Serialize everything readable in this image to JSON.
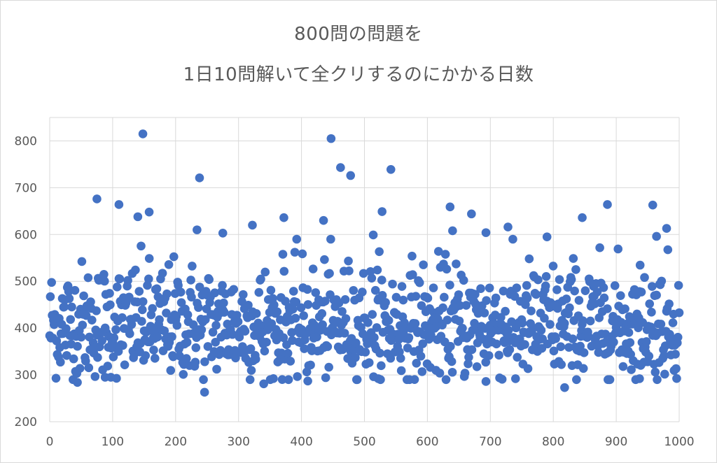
{
  "chart_data": {
    "type": "scatter",
    "title_line1": "800問の問題を",
    "title_line2": "1日10問解いて全クリするのにかかる日数",
    "xlabel": "",
    "ylabel": "",
    "xlim": [
      0,
      1000
    ],
    "ylim": [
      200,
      850
    ],
    "x_ticks": [
      "0",
      "100",
      "200",
      "300",
      "400",
      "500",
      "600",
      "700",
      "800",
      "900",
      "1000"
    ],
    "y_ticks": [
      "200",
      "300",
      "400",
      "500",
      "600",
      "700",
      "800"
    ],
    "grid": true,
    "marker_color": "#4472c4",
    "notable_points": [
      {
        "x": 148,
        "y": 815
      },
      {
        "x": 447,
        "y": 805
      },
      {
        "x": 462,
        "y": 743
      },
      {
        "x": 542,
        "y": 739
      },
      {
        "x": 478,
        "y": 726
      },
      {
        "x": 238,
        "y": 721
      },
      {
        "x": 75,
        "y": 676
      },
      {
        "x": 110,
        "y": 664
      },
      {
        "x": 886,
        "y": 664
      },
      {
        "x": 958,
        "y": 663
      },
      {
        "x": 636,
        "y": 659
      },
      {
        "x": 158,
        "y": 648
      },
      {
        "x": 528,
        "y": 649
      },
      {
        "x": 670,
        "y": 644
      },
      {
        "x": 140,
        "y": 638
      },
      {
        "x": 372,
        "y": 636
      },
      {
        "x": 846,
        "y": 636
      },
      {
        "x": 435,
        "y": 630
      },
      {
        "x": 322,
        "y": 620
      },
      {
        "x": 728,
        "y": 616
      },
      {
        "x": 980,
        "y": 613
      },
      {
        "x": 234,
        "y": 610
      },
      {
        "x": 640,
        "y": 608
      },
      {
        "x": 693,
        "y": 604
      },
      {
        "x": 275,
        "y": 603
      },
      {
        "x": 514,
        "y": 599
      },
      {
        "x": 790,
        "y": 595
      },
      {
        "x": 964,
        "y": 596
      },
      {
        "x": 246,
        "y": 263
      },
      {
        "x": 818,
        "y": 273
      },
      {
        "x": 44,
        "y": 284
      },
      {
        "x": 340,
        "y": 281
      },
      {
        "x": 522,
        "y": 292
      },
      {
        "x": 693,
        "y": 286
      },
      {
        "x": 740,
        "y": 292
      },
      {
        "x": 937,
        "y": 292
      },
      {
        "x": 88,
        "y": 295
      },
      {
        "x": 410,
        "y": 287
      }
    ],
    "bulk_distribution": {
      "count": 1000,
      "x_range": [
        0,
        1000
      ],
      "center": 400,
      "spread": 52,
      "skew_high": true
    }
  }
}
